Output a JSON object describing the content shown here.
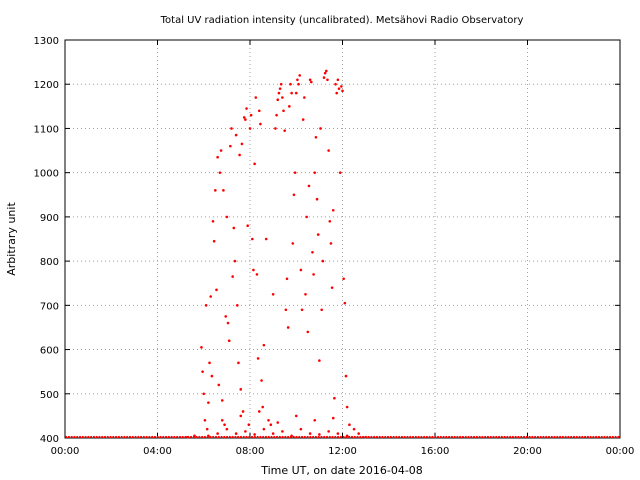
{
  "chart_data": {
    "type": "scatter",
    "title": "Total UV radiation intensity (uncalibrated). Metsähovi Radio Observatory",
    "xlabel": "Time UT, on date 2016-04-08",
    "ylabel": "Arbitrary unit",
    "x_unit": "hours UT",
    "xlim": [
      0,
      24
    ],
    "ylim": [
      400,
      1300
    ],
    "x_ticks": [
      {
        "value": 0,
        "label": "00:00"
      },
      {
        "value": 4,
        "label": "04:00"
      },
      {
        "value": 8,
        "label": "08:00"
      },
      {
        "value": 12,
        "label": "12:00"
      },
      {
        "value": 16,
        "label": "16:00"
      },
      {
        "value": 20,
        "label": "20:00"
      },
      {
        "value": 24,
        "label": "00:00"
      }
    ],
    "y_ticks": [
      400,
      500,
      600,
      700,
      800,
      900,
      1000,
      1100,
      1200,
      1300
    ],
    "grid": true,
    "colors": {
      "points": "#ff0000",
      "grid": "#a0a0a0",
      "axis": "#000000"
    },
    "baseline_value": 400,
    "series": [
      {
        "color": "#ff0000",
        "points": [
          [
            5.9,
            605
          ],
          [
            5.95,
            550
          ],
          [
            6.0,
            500
          ],
          [
            6.05,
            440
          ],
          [
            6.1,
            700
          ],
          [
            6.15,
            420
          ],
          [
            6.2,
            480
          ],
          [
            6.25,
            570
          ],
          [
            6.3,
            720
          ],
          [
            6.35,
            540
          ],
          [
            6.4,
            890
          ],
          [
            6.45,
            845
          ],
          [
            6.5,
            960
          ],
          [
            6.55,
            735
          ],
          [
            6.6,
            1035
          ],
          [
            6.65,
            520
          ],
          [
            6.7,
            1000
          ],
          [
            6.75,
            1050
          ],
          [
            6.8,
            485
          ],
          [
            6.85,
            960
          ],
          [
            6.9,
            430
          ],
          [
            6.95,
            675
          ],
          [
            7.0,
            900
          ],
          [
            7.05,
            660
          ],
          [
            7.1,
            620
          ],
          [
            7.15,
            1060
          ],
          [
            7.2,
            1100
          ],
          [
            7.25,
            765
          ],
          [
            7.3,
            875
          ],
          [
            7.35,
            800
          ],
          [
            7.4,
            1085
          ],
          [
            7.45,
            700
          ],
          [
            7.5,
            570
          ],
          [
            7.55,
            1040
          ],
          [
            7.6,
            510
          ],
          [
            7.65,
            1065
          ],
          [
            7.7,
            460
          ],
          [
            7.75,
            1125
          ],
          [
            7.8,
            1120
          ],
          [
            7.85,
            1145
          ],
          [
            7.9,
            880
          ],
          [
            7.95,
            430
          ],
          [
            8.0,
            1100
          ],
          [
            8.05,
            1130
          ],
          [
            8.1,
            850
          ],
          [
            8.15,
            780
          ],
          [
            8.2,
            1020
          ],
          [
            8.25,
            1170
          ],
          [
            8.3,
            770
          ],
          [
            8.35,
            580
          ],
          [
            8.4,
            1140
          ],
          [
            8.45,
            1110
          ],
          [
            8.5,
            530
          ],
          [
            8.55,
            470
          ],
          [
            8.6,
            610
          ],
          [
            8.7,
            850
          ],
          [
            8.8,
            440
          ],
          [
            8.9,
            430
          ],
          [
            9.0,
            725
          ],
          [
            9.1,
            1100
          ],
          [
            9.15,
            1130
          ],
          [
            9.2,
            1165
          ],
          [
            9.25,
            1180
          ],
          [
            9.3,
            1190
          ],
          [
            9.35,
            1200
          ],
          [
            9.4,
            1170
          ],
          [
            9.45,
            1140
          ],
          [
            9.5,
            1095
          ],
          [
            9.55,
            690
          ],
          [
            9.6,
            760
          ],
          [
            9.65,
            650
          ],
          [
            9.7,
            1150
          ],
          [
            9.75,
            1200
          ],
          [
            9.8,
            1180
          ],
          [
            9.85,
            840
          ],
          [
            9.9,
            950
          ],
          [
            9.95,
            1000
          ],
          [
            10.0,
            1180
          ],
          [
            10.05,
            1210
          ],
          [
            10.1,
            1200
          ],
          [
            10.15,
            1220
          ],
          [
            10.2,
            780
          ],
          [
            10.25,
            690
          ],
          [
            10.3,
            1120
          ],
          [
            10.35,
            1170
          ],
          [
            10.4,
            725
          ],
          [
            10.45,
            900
          ],
          [
            10.5,
            640
          ],
          [
            10.55,
            970
          ],
          [
            10.6,
            1210
          ],
          [
            10.65,
            1205
          ],
          [
            10.7,
            820
          ],
          [
            10.75,
            770
          ],
          [
            10.8,
            1000
          ],
          [
            10.85,
            1080
          ],
          [
            10.9,
            940
          ],
          [
            10.95,
            860
          ],
          [
            11.0,
            575
          ],
          [
            11.05,
            1100
          ],
          [
            11.1,
            690
          ],
          [
            11.15,
            800
          ],
          [
            11.2,
            1215
          ],
          [
            11.25,
            1225
          ],
          [
            11.3,
            1230
          ],
          [
            11.35,
            1210
          ],
          [
            11.4,
            1050
          ],
          [
            11.45,
            890
          ],
          [
            11.5,
            840
          ],
          [
            11.55,
            740
          ],
          [
            11.6,
            915
          ],
          [
            11.65,
            490
          ],
          [
            11.7,
            1200
          ],
          [
            11.75,
            1180
          ],
          [
            11.8,
            1210
          ],
          [
            11.85,
            1190
          ],
          [
            11.9,
            1000
          ],
          [
            11.95,
            1195
          ],
          [
            12.0,
            1185
          ],
          [
            12.05,
            760
          ],
          [
            12.1,
            705
          ],
          [
            12.15,
            540
          ],
          [
            12.2,
            470
          ],
          [
            6.2,
            405
          ],
          [
            6.6,
            410
          ],
          [
            7.0,
            420
          ],
          [
            7.4,
            410
          ],
          [
            7.8,
            415
          ],
          [
            8.2,
            408
          ],
          [
            8.6,
            420
          ],
          [
            9.0,
            410
          ],
          [
            9.4,
            415
          ],
          [
            9.8,
            405
          ],
          [
            10.2,
            420
          ],
          [
            10.6,
            410
          ],
          [
            11.0,
            408
          ],
          [
            11.4,
            415
          ],
          [
            11.8,
            410
          ],
          [
            12.2,
            405
          ],
          [
            6.8,
            440
          ],
          [
            7.6,
            450
          ],
          [
            8.4,
            460
          ],
          [
            9.2,
            435
          ],
          [
            10.0,
            450
          ],
          [
            10.8,
            440
          ],
          [
            11.6,
            445
          ],
          [
            12.3,
            430
          ],
          [
            12.5,
            420
          ],
          [
            12.7,
            410
          ],
          [
            5.6,
            405
          ],
          [
            5.3,
            402
          ],
          [
            13.0,
            402
          ]
        ]
      }
    ]
  }
}
